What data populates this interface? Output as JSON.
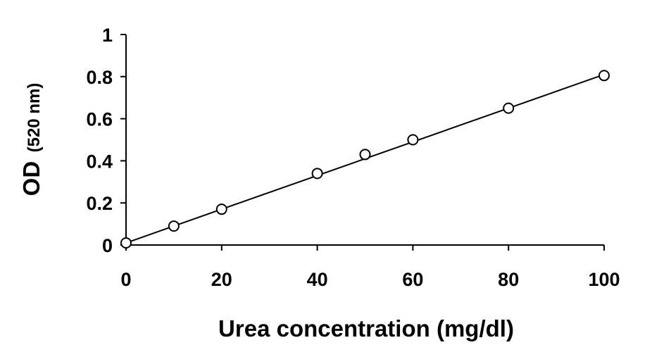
{
  "chart_data": {
    "type": "scatter",
    "xlabel": "Urea concentration (mg/dl)",
    "ylabel_main": "OD",
    "ylabel_sub": "(520 nm)",
    "xlim": [
      0,
      100
    ],
    "ylim": [
      0,
      1
    ],
    "x_ticks": [
      0,
      20,
      40,
      60,
      80,
      100
    ],
    "x_tick_labels": [
      "0",
      "20",
      "40",
      "60",
      "80",
      "100"
    ],
    "y_ticks": [
      0,
      0.2,
      0.4,
      0.6,
      0.8,
      1
    ],
    "y_tick_labels": [
      "0",
      "0.2",
      "0.4",
      "0.6",
      "0.8",
      "1"
    ],
    "grid": false,
    "legend": "none",
    "marker": "open-circle",
    "series": [
      {
        "points": [
          {
            "x": 0,
            "y": 0.01
          },
          {
            "x": 10,
            "y": 0.09
          },
          {
            "x": 20,
            "y": 0.17
          },
          {
            "x": 40,
            "y": 0.34
          },
          {
            "x": 50,
            "y": 0.43
          },
          {
            "x": 60,
            "y": 0.5
          },
          {
            "x": 80,
            "y": 0.65
          },
          {
            "x": 100,
            "y": 0.805
          }
        ]
      }
    ],
    "trendline": {
      "type": "linear",
      "from": {
        "x": 0,
        "y": 0.01
      },
      "to": {
        "x": 100,
        "y": 0.81
      }
    },
    "colors": {
      "axis": "#000000",
      "line": "#000000",
      "marker_stroke": "#000000",
      "marker_fill": "#ffffff"
    }
  }
}
